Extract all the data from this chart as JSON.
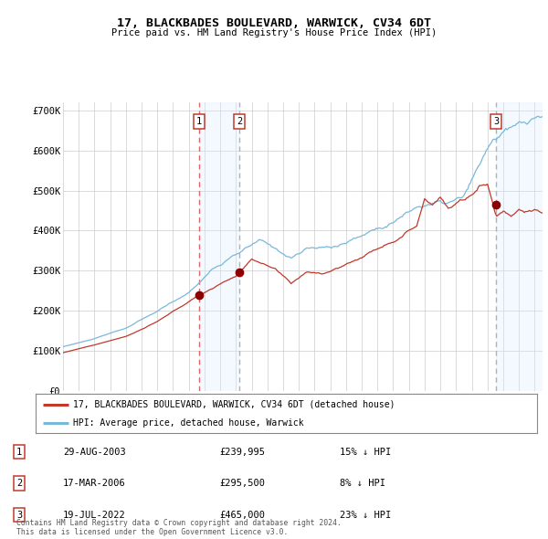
{
  "title": "17, BLACKBADES BOULEVARD, WARWICK, CV34 6DT",
  "subtitle": "Price paid vs. HM Land Registry's House Price Index (HPI)",
  "xlim_start": 1995.0,
  "xlim_end": 2025.5,
  "ylim": [
    0,
    720000
  ],
  "yticks": [
    0,
    100000,
    200000,
    300000,
    400000,
    500000,
    600000,
    700000
  ],
  "ytick_labels": [
    "£0",
    "£100K",
    "£200K",
    "£300K",
    "£400K",
    "£500K",
    "£600K",
    "£700K"
  ],
  "sale_dates": [
    2003.66,
    2006.21,
    2022.55
  ],
  "sale_prices": [
    239995,
    295500,
    465000
  ],
  "sale_labels": [
    "1",
    "2",
    "3"
  ],
  "line_color_hpi": "#7ab8d9",
  "line_color_price": "#c0392b",
  "dot_color": "#8b0000",
  "shade_color": "#ddeeff",
  "vline1_color": "#e05555",
  "vline2_color": "#aaaaaa",
  "legend_label_price": "17, BLACKBADES BOULEVARD, WARWICK, CV34 6DT (detached house)",
  "legend_label_hpi": "HPI: Average price, detached house, Warwick",
  "table_data": [
    [
      "1",
      "29-AUG-2003",
      "£239,995",
      "15% ↓ HPI"
    ],
    [
      "2",
      "17-MAR-2006",
      "£295,500",
      "8% ↓ HPI"
    ],
    [
      "3",
      "19-JUL-2022",
      "£465,000",
      "23% ↓ HPI"
    ]
  ],
  "footnote": "Contains HM Land Registry data © Crown copyright and database right 2024.\nThis data is licensed under the Open Government Licence v3.0.",
  "background_color": "#ffffff",
  "grid_color": "#cccccc"
}
